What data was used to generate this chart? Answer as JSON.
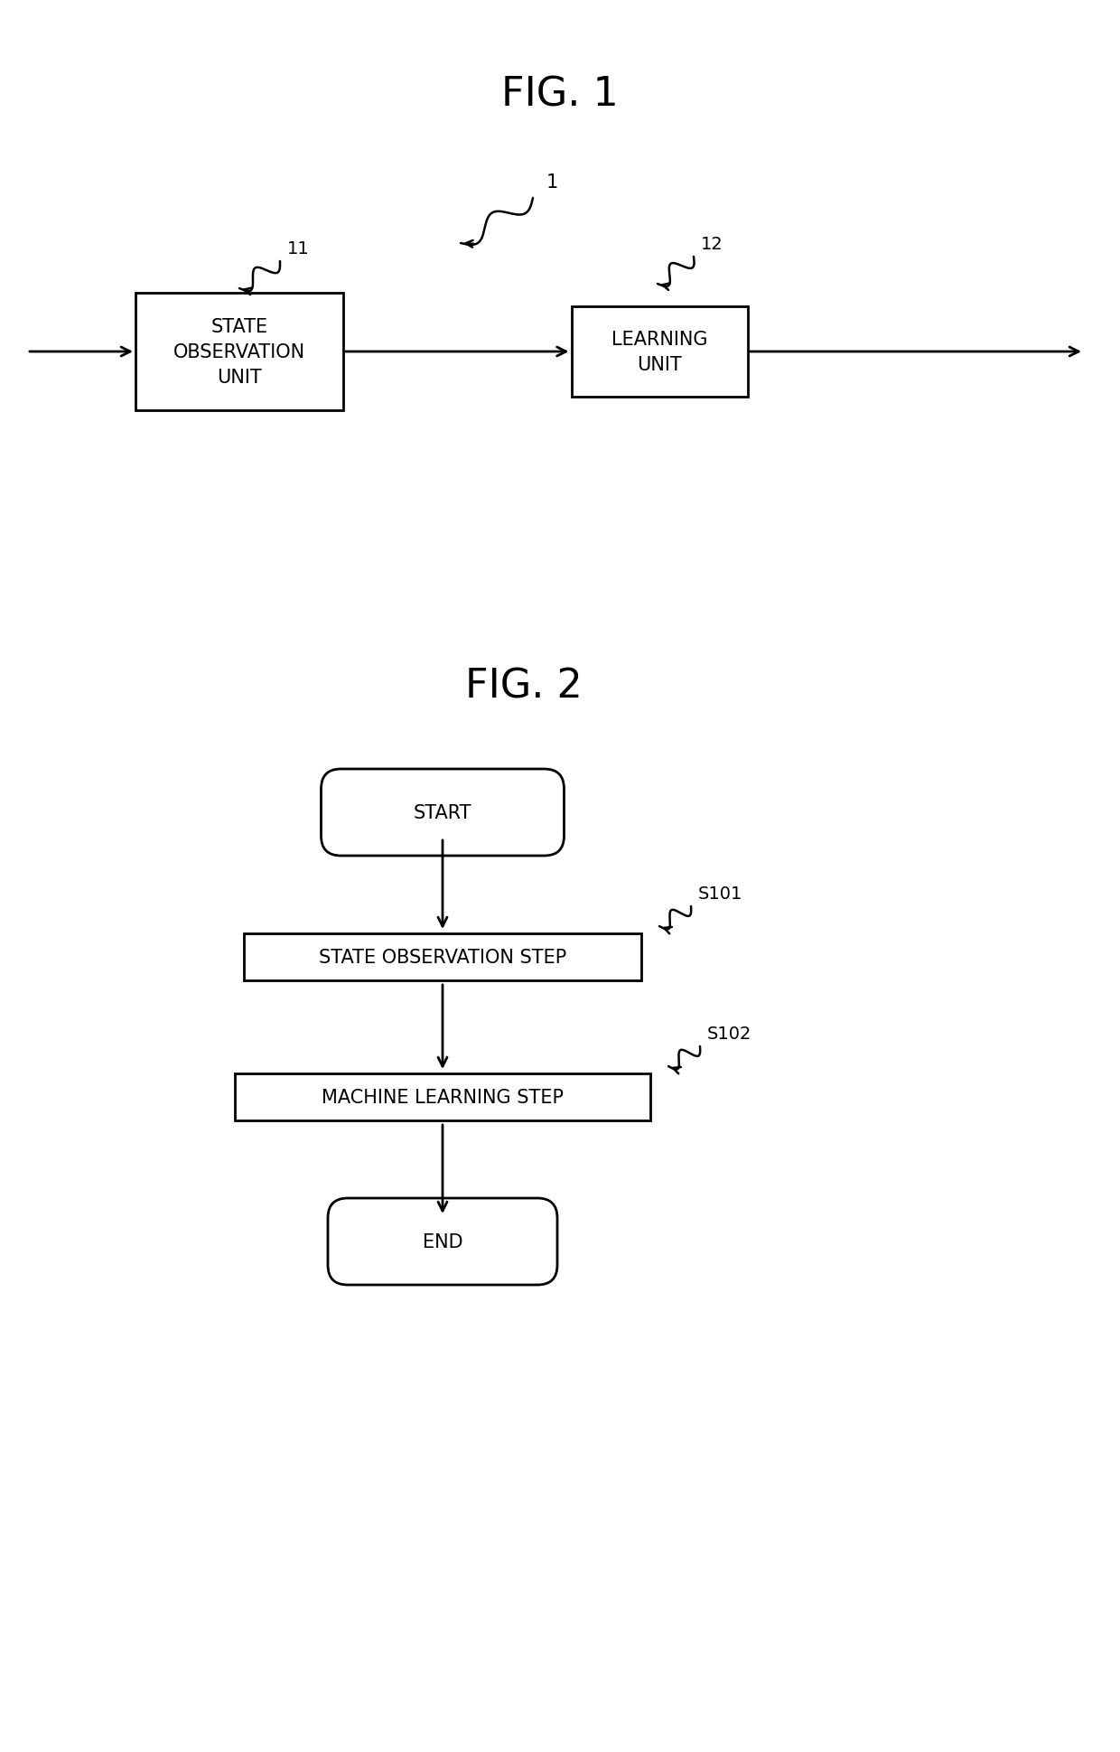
{
  "fig1_title": "FIG. 1",
  "fig2_title": "FIG. 2",
  "fig2_start_label": "START",
  "fig2_end_label": "END",
  "fig2_step1_label": "STATE OBSERVATION STEP",
  "fig2_step2_label": "MACHINE LEARNING STEP",
  "fig2_step1_tag": "S101",
  "fig2_step2_tag": "S102",
  "bg_color": "#ffffff",
  "line_color": "#000000",
  "text_color": "#000000",
  "font_size_title": 32,
  "font_size_box": 15,
  "font_size_tag": 14,
  "font_size_label": 14
}
